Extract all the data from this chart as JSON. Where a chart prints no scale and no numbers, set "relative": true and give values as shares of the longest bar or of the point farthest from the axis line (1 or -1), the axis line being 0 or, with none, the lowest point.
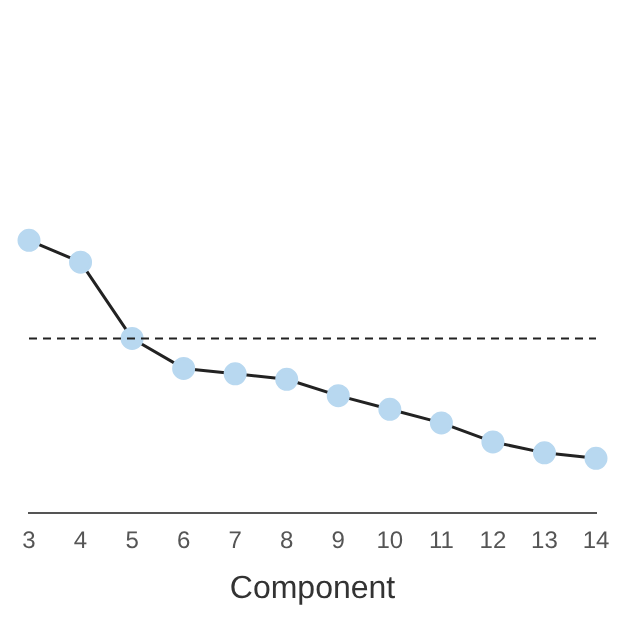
{
  "chart_data": {
    "type": "line",
    "relative": true,
    "xlabel": "Component",
    "categories": [
      "3",
      "4",
      "5",
      "6",
      "7",
      "8",
      "9",
      "10",
      "11",
      "12",
      "13",
      "14"
    ],
    "series": [
      {
        "color": "#222222",
        "colors": [
          "#b8d8f0",
          "#b8d8f0",
          "#b8d8f0",
          "#b8d8f0",
          "#b8d8f0",
          "#b8d8f0",
          "#b8d8f0",
          "#b8d8f0",
          "#b8d8f0",
          "#b8d8f0",
          "#b8d8f0",
          "#b8d8f0"
        ],
        "values": [
          1,
          0.92,
          0.64,
          0.53,
          0.51,
          0.49,
          0.43,
          0.38,
          0.33,
          0.26,
          0.22,
          0.2
        ]
      }
    ],
    "marker": "circle",
    "line_style": "solid",
    "grid": false,
    "legend": false,
    "ref_lines": [
      {
        "axis": "y",
        "value": 0.64,
        "line_style": "dashed",
        "color": "#222222"
      }
    ]
  }
}
